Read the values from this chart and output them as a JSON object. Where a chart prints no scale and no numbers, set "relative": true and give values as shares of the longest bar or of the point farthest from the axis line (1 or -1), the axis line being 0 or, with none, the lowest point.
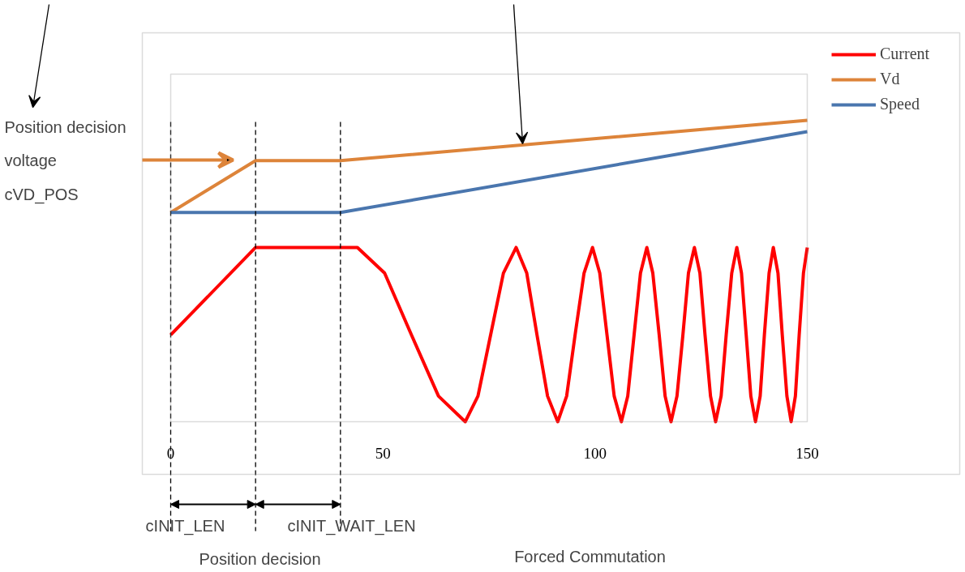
{
  "chart_data": {
    "type": "line",
    "relative": true,
    "xlim": [
      0,
      150
    ],
    "xticks": [
      0,
      50,
      100,
      150
    ],
    "series": [
      {
        "name": "Current",
        "color": "#ff0000",
        "x": [
          0,
          20,
          40,
          44,
          50.4,
          56.7,
          63.1,
          69.4,
          72.4,
          75.4,
          78.4,
          81.4,
          83.9,
          86.3,
          88.8,
          91.2,
          93.3,
          95.3,
          97.4,
          99.4,
          101.1,
          102.8,
          104.5,
          106.2,
          107.7,
          109.2,
          110.7,
          112.2,
          113.6,
          115.1,
          116.5,
          117.9,
          119.3,
          120.7,
          122.0,
          123.4,
          124.7,
          125.9,
          127.2,
          128.4,
          129.7,
          130.9,
          132.2,
          133.4,
          134.5,
          135.6,
          136.7,
          137.8,
          138.9,
          139.9,
          141.0,
          142,
          143.1,
          144.1,
          145.2,
          146.2,
          147.2,
          148.1,
          149.1,
          150
        ],
        "values": [
          0.288,
          0.578,
          0.578,
          0.578,
          0.493,
          0.289,
          0.085,
          0,
          0.085,
          0.289,
          0.493,
          0.578,
          0.493,
          0.289,
          0.085,
          0,
          0.085,
          0.289,
          0.493,
          0.578,
          0.493,
          0.289,
          0.085,
          0,
          0.085,
          0.289,
          0.493,
          0.578,
          0.493,
          0.289,
          0.085,
          0,
          0.085,
          0.289,
          0.493,
          0.578,
          0.493,
          0.289,
          0.085,
          0,
          0.085,
          0.289,
          0.493,
          0.578,
          0.493,
          0.289,
          0.085,
          0,
          0.085,
          0.289,
          0.493,
          0.578,
          0.493,
          0.289,
          0.085,
          0,
          0.085,
          0.289,
          0.493,
          0.578
        ]
      },
      {
        "name": "Vd",
        "color": "#dd843a",
        "x": [
          0,
          20,
          40,
          150
        ],
        "values": [
          0.694,
          0.866,
          0.866,
          1
        ]
      },
      {
        "name": "Speed",
        "color": "#4a76ae",
        "x": [
          0,
          40,
          150
        ],
        "values": [
          0.694,
          0.694,
          0.962
        ]
      }
    ],
    "ref_lines": [
      {
        "axis": "x",
        "value": 0,
        "line_style": "dashed",
        "color": "#000000"
      },
      {
        "axis": "x",
        "value": 20,
        "line_style": "dashed",
        "color": "#000000"
      },
      {
        "axis": "x",
        "value": 40,
        "line_style": "dashed",
        "color": "#000000"
      }
    ],
    "annotations": [
      "Position  decision\nvoltage\ncVD_POS",
      "cINIT_LEN",
      "cINIT_WAIT_LEN",
      "Position decision",
      "Forced Commutation"
    ],
    "legend": "right",
    "grid": false,
    "marker": "none",
    "line_style": "solid"
  }
}
